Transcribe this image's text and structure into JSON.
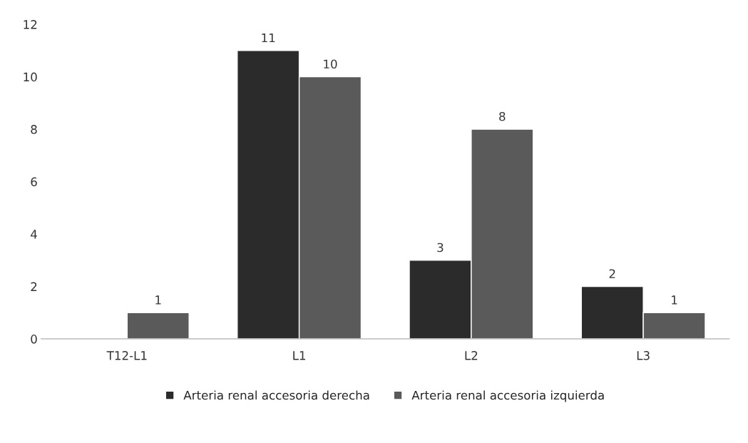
{
  "chart_data": {
    "type": "bar",
    "categories": [
      "T12-L1",
      "L1",
      "L2",
      "L3"
    ],
    "series": [
      {
        "name": "Arteria renal accesoria derecha",
        "color": "#2b2b2b",
        "values": [
          null,
          11,
          3,
          2
        ]
      },
      {
        "name": "Arteria renal accesoria izquierda",
        "color": "#5a5a5a",
        "values": [
          1,
          10,
          8,
          1
        ]
      }
    ],
    "ylim": [
      0,
      12
    ],
    "yticks": [
      0,
      2,
      4,
      6,
      8,
      10,
      12
    ],
    "grid": false,
    "legend": "bottom",
    "data_labels": true
  }
}
